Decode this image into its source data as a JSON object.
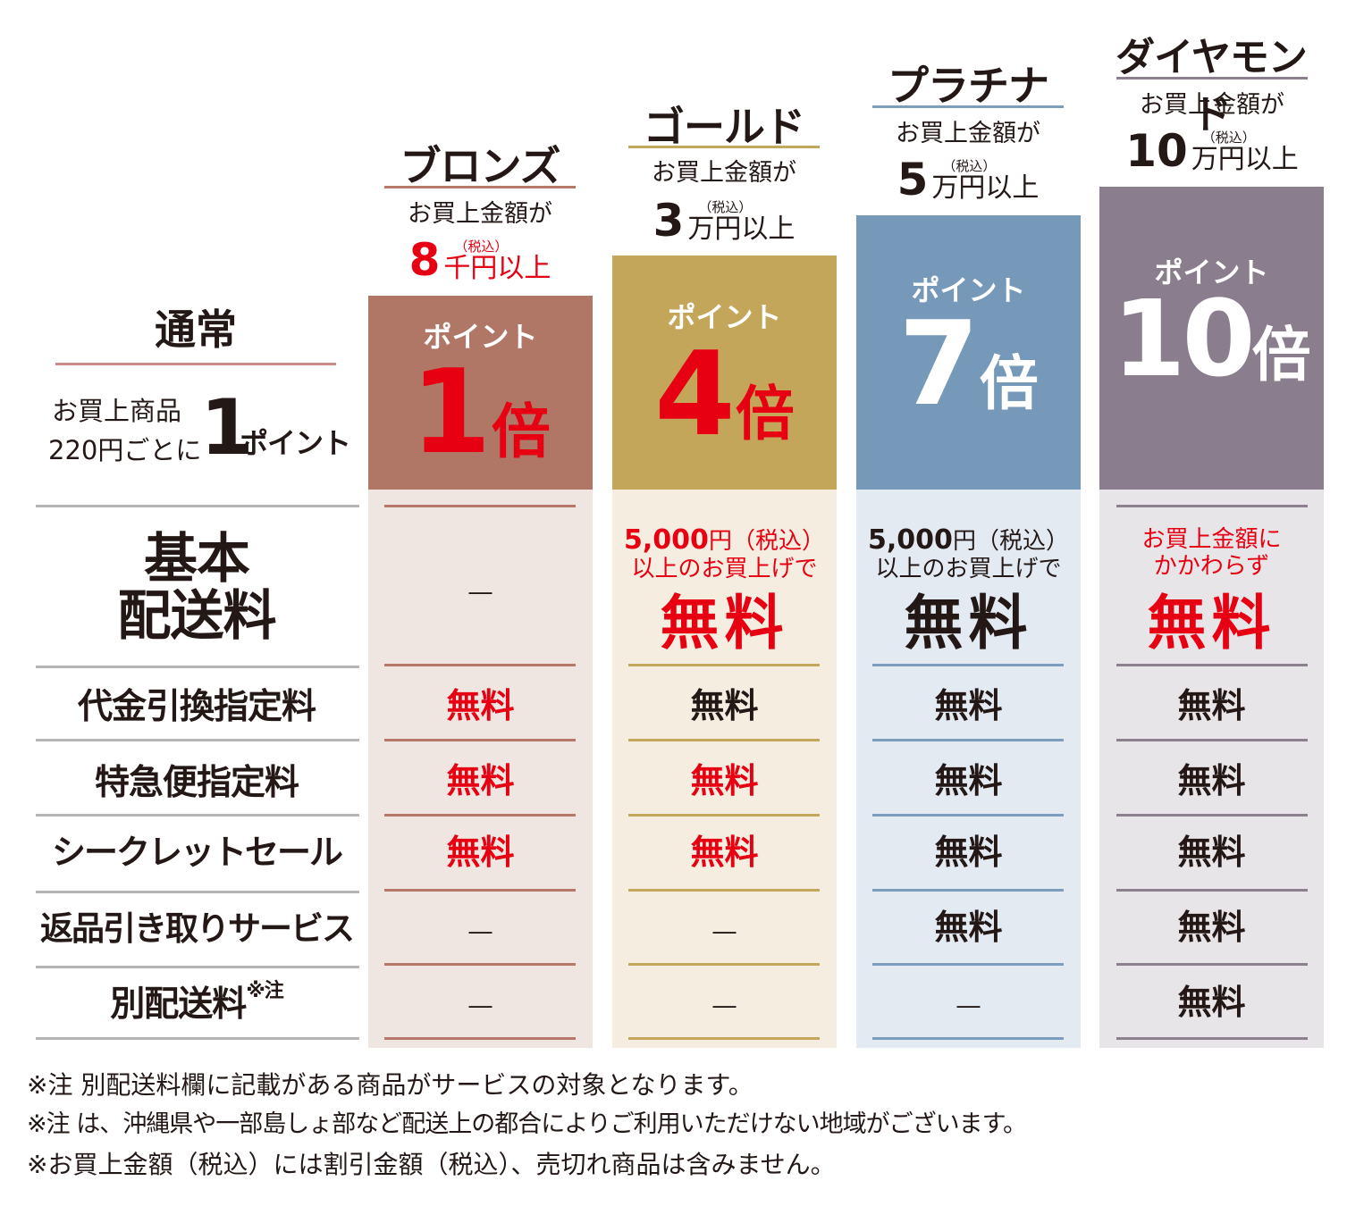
{
  "normal": {
    "title": "通常",
    "desc_line1": "お買上商品",
    "desc_line2": "220円ごとに",
    "point_num": "1",
    "point_unit": "ポイント"
  },
  "tiers": [
    {
      "name": "ブロンズ",
      "condition": "お買上金額が",
      "amount": "8",
      "tax": "（税込）",
      "unit": "千円以上",
      "point_label": "ポイント",
      "multiplier": "1",
      "multiplier_unit": "倍",
      "color": "#b07767",
      "body_color": "#efe5e1",
      "line_color": "#b7786a",
      "shipping": "―",
      "cod": "無料",
      "express": "無料",
      "secret_sale": "無料",
      "return_pickup": "―",
      "separate_shipping": "―"
    },
    {
      "name": "ゴールド",
      "condition": "お買上金額が",
      "amount": "3",
      "tax": "（税込）",
      "unit": "万円以上",
      "point_label": "ポイント",
      "multiplier": "4",
      "multiplier_unit": "倍",
      "color": "#c4a65a",
      "body_color": "#f4ede0",
      "line_color": "#c2a75c",
      "shipping_amount": "5,000",
      "shipping_yen": "円（税込）",
      "shipping_cond": "以上のお買上げで",
      "shipping": "無料",
      "cod": "無料",
      "express": "無料",
      "secret_sale": "無料",
      "return_pickup": "―",
      "separate_shipping": "―"
    },
    {
      "name": "プラチナ",
      "condition": "お買上金額が",
      "amount": "5",
      "tax": "（税込）",
      "unit": "万円以上",
      "point_label": "ポイント",
      "multiplier": "7",
      "multiplier_unit": "倍",
      "color": "#7698b9",
      "body_color": "#e3eaf2",
      "line_color": "#7c9dbd",
      "shipping_amount": "5,000",
      "shipping_yen": "円（税込）",
      "shipping_cond": "以上のお買上げで",
      "shipping": "無料",
      "cod": "無料",
      "express": "無料",
      "secret_sale": "無料",
      "return_pickup": "無料",
      "separate_shipping": "―"
    },
    {
      "name": "ダイヤモンド",
      "condition": "お買上金額が",
      "amount": "10",
      "tax": "（税込）",
      "unit": "万円以上",
      "point_label": "ポイント",
      "multiplier": "10",
      "multiplier_unit": "倍",
      "color": "#8a7d8d",
      "body_color": "#e8e5e8",
      "line_color": "#8c7f8e",
      "shipping_line1": "お買上金額に",
      "shipping_line2": "かかわらず",
      "shipping": "無料",
      "cod": "無料",
      "express": "無料",
      "secret_sale": "無料",
      "return_pickup": "無料",
      "separate_shipping": "無料"
    }
  ],
  "rows": {
    "shipping_line1": "基本",
    "shipping_line2": "配送料",
    "cod": "代金引換指定料",
    "express": "特急便指定料",
    "secret_sale": "シークレットセール",
    "return_pickup": "返品引き取りサービス",
    "separate_shipping": "別配送料",
    "separate_shipping_mark": "※注"
  },
  "notes": [
    "※注 別配送料欄に記載がある商品がサービスの対象となります。",
    "※注 は、沖縄県や一部島しょ部など配送上の都合によりご利用いただけない地域がございます。",
    "※お買上金額（税込）には割引金額（税込）、売切れ商品は含みません。"
  ]
}
